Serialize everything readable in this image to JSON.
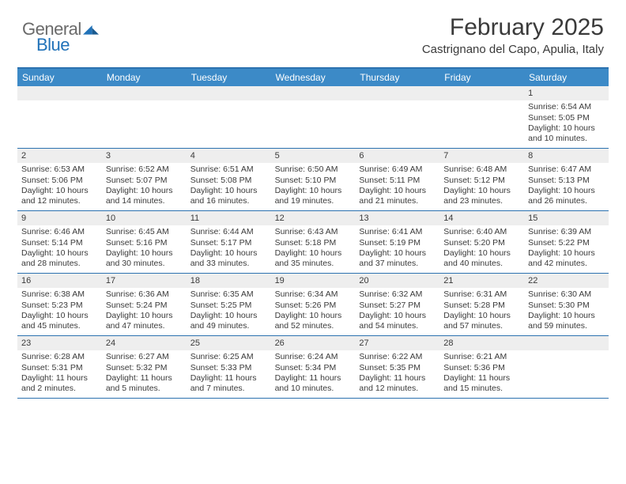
{
  "logo": {
    "word1": "General",
    "word2": "Blue"
  },
  "title": "February 2025",
  "location": "Castrignano del Capo, Apulia, Italy",
  "colors": {
    "header_bar": "#3c8ac7",
    "border": "#2c72b0",
    "daynum_bg": "#eeeeee",
    "text": "#3a3a3a",
    "logo_gray": "#6a6a6a",
    "logo_blue": "#2172b8"
  },
  "day_names": [
    "Sunday",
    "Monday",
    "Tuesday",
    "Wednesday",
    "Thursday",
    "Friday",
    "Saturday"
  ],
  "weeks": [
    [
      null,
      null,
      null,
      null,
      null,
      null,
      {
        "n": "1",
        "sr": "6:54 AM",
        "ss": "5:05 PM",
        "dl": "10 hours and 10 minutes."
      }
    ],
    [
      {
        "n": "2",
        "sr": "6:53 AM",
        "ss": "5:06 PM",
        "dl": "10 hours and 12 minutes."
      },
      {
        "n": "3",
        "sr": "6:52 AM",
        "ss": "5:07 PM",
        "dl": "10 hours and 14 minutes."
      },
      {
        "n": "4",
        "sr": "6:51 AM",
        "ss": "5:08 PM",
        "dl": "10 hours and 16 minutes."
      },
      {
        "n": "5",
        "sr": "6:50 AM",
        "ss": "5:10 PM",
        "dl": "10 hours and 19 minutes."
      },
      {
        "n": "6",
        "sr": "6:49 AM",
        "ss": "5:11 PM",
        "dl": "10 hours and 21 minutes."
      },
      {
        "n": "7",
        "sr": "6:48 AM",
        "ss": "5:12 PM",
        "dl": "10 hours and 23 minutes."
      },
      {
        "n": "8",
        "sr": "6:47 AM",
        "ss": "5:13 PM",
        "dl": "10 hours and 26 minutes."
      }
    ],
    [
      {
        "n": "9",
        "sr": "6:46 AM",
        "ss": "5:14 PM",
        "dl": "10 hours and 28 minutes."
      },
      {
        "n": "10",
        "sr": "6:45 AM",
        "ss": "5:16 PM",
        "dl": "10 hours and 30 minutes."
      },
      {
        "n": "11",
        "sr": "6:44 AM",
        "ss": "5:17 PM",
        "dl": "10 hours and 33 minutes."
      },
      {
        "n": "12",
        "sr": "6:43 AM",
        "ss": "5:18 PM",
        "dl": "10 hours and 35 minutes."
      },
      {
        "n": "13",
        "sr": "6:41 AM",
        "ss": "5:19 PM",
        "dl": "10 hours and 37 minutes."
      },
      {
        "n": "14",
        "sr": "6:40 AM",
        "ss": "5:20 PM",
        "dl": "10 hours and 40 minutes."
      },
      {
        "n": "15",
        "sr": "6:39 AM",
        "ss": "5:22 PM",
        "dl": "10 hours and 42 minutes."
      }
    ],
    [
      {
        "n": "16",
        "sr": "6:38 AM",
        "ss": "5:23 PM",
        "dl": "10 hours and 45 minutes."
      },
      {
        "n": "17",
        "sr": "6:36 AM",
        "ss": "5:24 PM",
        "dl": "10 hours and 47 minutes."
      },
      {
        "n": "18",
        "sr": "6:35 AM",
        "ss": "5:25 PM",
        "dl": "10 hours and 49 minutes."
      },
      {
        "n": "19",
        "sr": "6:34 AM",
        "ss": "5:26 PM",
        "dl": "10 hours and 52 minutes."
      },
      {
        "n": "20",
        "sr": "6:32 AM",
        "ss": "5:27 PM",
        "dl": "10 hours and 54 minutes."
      },
      {
        "n": "21",
        "sr": "6:31 AM",
        "ss": "5:28 PM",
        "dl": "10 hours and 57 minutes."
      },
      {
        "n": "22",
        "sr": "6:30 AM",
        "ss": "5:30 PM",
        "dl": "10 hours and 59 minutes."
      }
    ],
    [
      {
        "n": "23",
        "sr": "6:28 AM",
        "ss": "5:31 PM",
        "dl": "11 hours and 2 minutes."
      },
      {
        "n": "24",
        "sr": "6:27 AM",
        "ss": "5:32 PM",
        "dl": "11 hours and 5 minutes."
      },
      {
        "n": "25",
        "sr": "6:25 AM",
        "ss": "5:33 PM",
        "dl": "11 hours and 7 minutes."
      },
      {
        "n": "26",
        "sr": "6:24 AM",
        "ss": "5:34 PM",
        "dl": "11 hours and 10 minutes."
      },
      {
        "n": "27",
        "sr": "6:22 AM",
        "ss": "5:35 PM",
        "dl": "11 hours and 12 minutes."
      },
      {
        "n": "28",
        "sr": "6:21 AM",
        "ss": "5:36 PM",
        "dl": "11 hours and 15 minutes."
      },
      null
    ]
  ],
  "labels": {
    "sunrise": "Sunrise:",
    "sunset": "Sunset:",
    "daylight": "Daylight:"
  }
}
